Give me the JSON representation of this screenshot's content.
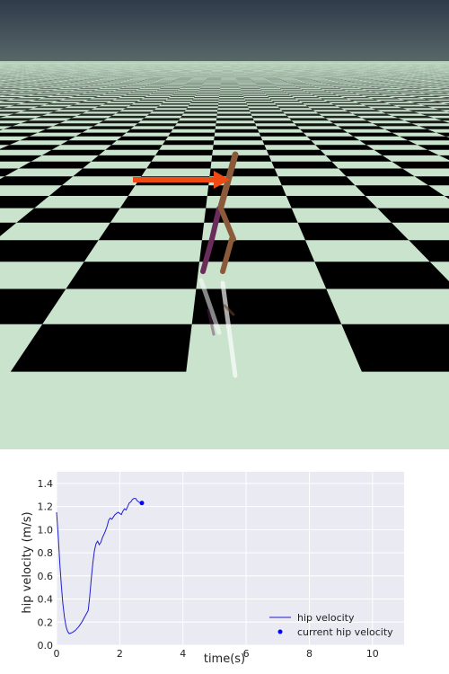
{
  "scene": {
    "sky_color": "#2f3b4a",
    "horizon_color": "#5a6a6a",
    "floor_light_color": "#c9e3cd",
    "floor_dark_color": "#000000",
    "arrow_color": "#f04a14",
    "leg_front_color": "#8a5a3a",
    "leg_back_color": "#6a2c5a"
  },
  "chart_data": {
    "type": "line",
    "title": "",
    "xlabel": "time(s)",
    "ylabel": "hip velocity (m/s)",
    "xlim": [
      0,
      11
    ],
    "ylim": [
      0,
      1.5
    ],
    "xticks": [
      0,
      2,
      4,
      6,
      8,
      10
    ],
    "yticks": [
      0.0,
      0.2,
      0.4,
      0.6,
      0.8,
      1.0,
      1.2,
      1.4
    ],
    "xtick_labels": [
      "0",
      "2",
      "4",
      "6",
      "8",
      "10"
    ],
    "ytick_labels": [
      "0.0",
      "0.2",
      "0.4",
      "0.6",
      "0.8",
      "1.0",
      "1.2",
      "1.4"
    ],
    "grid": true,
    "legend_position": "bottom-right",
    "background_color": "#eaeaf2",
    "series": [
      {
        "name": "hip velocity",
        "color": "#1f1fcf",
        "x": [
          0.0,
          0.05,
          0.1,
          0.15,
          0.2,
          0.25,
          0.3,
          0.35,
          0.4,
          0.45,
          0.5,
          0.6,
          0.7,
          0.8,
          0.9,
          1.0,
          1.05,
          1.1,
          1.15,
          1.2,
          1.25,
          1.3,
          1.35,
          1.4,
          1.45,
          1.5,
          1.55,
          1.6,
          1.65,
          1.7,
          1.75,
          1.8,
          1.85,
          1.9,
          1.95,
          2.0,
          2.05,
          2.1,
          2.15,
          2.2,
          2.25,
          2.3,
          2.35,
          2.4,
          2.45,
          2.5,
          2.55,
          2.6,
          2.65
        ],
        "y": [
          1.15,
          0.95,
          0.72,
          0.52,
          0.36,
          0.24,
          0.16,
          0.12,
          0.1,
          0.105,
          0.11,
          0.13,
          0.16,
          0.2,
          0.25,
          0.3,
          0.42,
          0.58,
          0.72,
          0.82,
          0.88,
          0.9,
          0.87,
          0.89,
          0.93,
          0.96,
          0.99,
          1.03,
          1.08,
          1.1,
          1.09,
          1.11,
          1.13,
          1.14,
          1.15,
          1.14,
          1.13,
          1.16,
          1.18,
          1.17,
          1.2,
          1.23,
          1.24,
          1.26,
          1.27,
          1.27,
          1.25,
          1.24,
          1.23
        ]
      },
      {
        "name": "current hip velocity",
        "color": "#0000ff",
        "type": "scatter",
        "x": [
          2.7
        ],
        "y": [
          1.23
        ]
      }
    ]
  }
}
